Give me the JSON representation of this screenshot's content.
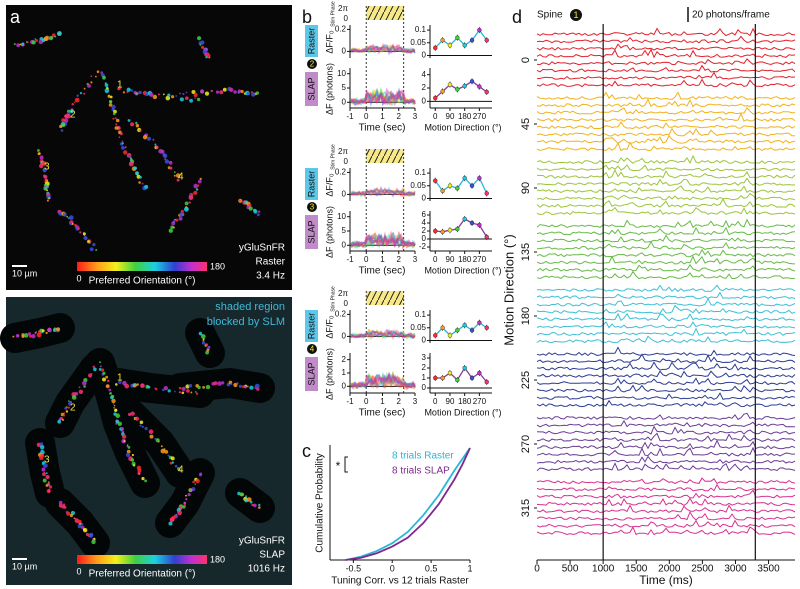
{
  "panel_a": {
    "label": "a",
    "raster": {
      "spine_labels": [
        "1",
        "2",
        "3",
        "4"
      ],
      "scale_bar": "10 µm",
      "colorbar": {
        "min": "0",
        "max": "180",
        "title": "Preferred Orientation (°)"
      },
      "info": [
        "yGluSnFR",
        "Raster",
        "3.4 Hz"
      ]
    },
    "slap": {
      "note": [
        "shaded region",
        "blocked by SLM"
      ],
      "spine_labels": [
        "1",
        "2",
        "3",
        "4"
      ],
      "scale_bar": "10 µm",
      "colorbar": {
        "min": "0",
        "max": "180",
        "title": "Preferred Orientation (°)"
      },
      "info": [
        "yGluSnFR",
        "SLAP",
        "1016 Hz"
      ]
    }
  },
  "panel_b": {
    "label": "b",
    "stim_phase_label": "Stim Phase",
    "stim_phase_ticks": [
      "2π",
      "0"
    ],
    "raster_tag": "Raster",
    "slap_tag": "SLAP",
    "raster_ylabel": "ΔF/F₀",
    "slap_ylabel": "ΔF (photons)",
    "time_label": "Time (sec)",
    "direction_label": "Motion Direction (°)",
    "time_xlim": [
      -1,
      3
    ],
    "time_xticks": [
      -1,
      0,
      1,
      2,
      3
    ],
    "stim_window_sec": [
      0,
      2.3
    ],
    "direction_xlim": [
      -20,
      335
    ],
    "direction_xticks": [
      0,
      90,
      180,
      270
    ],
    "directions": [
      0,
      45,
      90,
      135,
      180,
      225,
      270,
      315
    ],
    "spines": [
      {
        "id": "2",
        "raster_ylim": [
          -0.06,
          0.24
        ],
        "raster_yticks": [
          0,
          0.2
        ],
        "slap_ylim": [
          -2,
          12
        ],
        "slap_yticks": [
          0,
          5,
          10
        ],
        "raster_tuning_ylim": [
          -0.01,
          0.12
        ],
        "raster_tuning_yticks": [
          0,
          0.05,
          0.1
        ],
        "raster_tuning": [
          0.03,
          0.06,
          0.04,
          0.07,
          0.04,
          0.06,
          0.1,
          0.06
        ],
        "slap_tuning_ylim": [
          -1,
          5
        ],
        "slap_tuning_yticks": [
          0,
          2,
          4
        ],
        "slap_tuning": [
          0.5,
          1.5,
          2.5,
          1.8,
          2.3,
          3.0,
          2.2,
          1.4
        ]
      },
      {
        "id": "3",
        "raster_ylim": [
          -0.06,
          0.24
        ],
        "raster_yticks": [
          0,
          0.2
        ],
        "slap_ylim": [
          -2,
          12
        ],
        "slap_yticks": [
          0,
          5,
          10
        ],
        "raster_tuning_ylim": [
          -0.01,
          0.12
        ],
        "raster_tuning_yticks": [
          0,
          0.05,
          0.1
        ],
        "raster_tuning": [
          0.07,
          0.03,
          0.05,
          0.04,
          0.08,
          0.05,
          0.08,
          0.02
        ],
        "slap_tuning_ylim": [
          -3,
          7
        ],
        "slap_tuning_yticks": [
          -2,
          0,
          2,
          4,
          6
        ],
        "slap_tuning": [
          2,
          1.8,
          2.2,
          2.5,
          5,
          4,
          3.5,
          0.5
        ]
      },
      {
        "id": "4",
        "raster_ylim": [
          -0.06,
          0.24
        ],
        "raster_yticks": [
          0,
          0.2
        ],
        "slap_ylim": [
          -0.5,
          2.5
        ],
        "slap_yticks": [
          0,
          1,
          2
        ],
        "raster_tuning_ylim": [
          -0.01,
          0.12
        ],
        "raster_tuning_yticks": [
          0,
          0.05,
          0.1
        ],
        "raster_tuning": [
          0.02,
          0.05,
          0.02,
          0.04,
          0.06,
          0.04,
          0.07,
          0.05
        ],
        "slap_tuning_ylim": [
          -0.5,
          3.5
        ],
        "slap_tuning_yticks": [
          0,
          1,
          2,
          3
        ],
        "slap_tuning": [
          1.0,
          1.0,
          1.5,
          0.8,
          2.0,
          1.0,
          1.5,
          0.6
        ]
      }
    ]
  },
  "panel_c": {
    "label": "c",
    "type": "line",
    "xlabel": "Tuning Corr. vs 12 trials Raster",
    "ylabel": "Cumulative Probability",
    "significance": "*",
    "xlim": [
      -0.8,
      1
    ],
    "xticks": [
      -0.5,
      0,
      0.5,
      1
    ],
    "ylim": [
      0,
      1
    ],
    "x": [
      -0.6,
      -0.4,
      -0.2,
      0,
      0.2,
      0.4,
      0.6,
      0.8,
      0.9,
      1
    ],
    "series": [
      {
        "name": "8 trials Raster",
        "color": "#29b6d8",
        "values": [
          0,
          0.03,
          0.08,
          0.15,
          0.25,
          0.4,
          0.58,
          0.8,
          0.9,
          1
        ]
      },
      {
        "name": "8 trials SLAP",
        "color": "#7d2a8c",
        "values": [
          0,
          0.02,
          0.06,
          0.12,
          0.2,
          0.33,
          0.5,
          0.72,
          0.85,
          1
        ]
      }
    ]
  },
  "panel_d": {
    "label": "d",
    "type": "line",
    "spine_label": "Spine",
    "spine_id": "1",
    "scale_bar": "20 photons/frame",
    "xlabel": "Time (ms)",
    "ylabel": "Motion Direction (°)",
    "xlim": [
      0,
      3900
    ],
    "xticks": [
      0,
      500,
      1000,
      1500,
      2000,
      2500,
      3000,
      3500
    ],
    "stim_lines_ms": [
      1000,
      3300
    ],
    "categories": [
      0,
      45,
      90,
      135,
      180,
      225,
      270,
      315
    ],
    "colors": [
      "#e3202b",
      "#f1b21c",
      "#9cc53b",
      "#66bb46",
      "#3cbfd6",
      "#2c3b94",
      "#6b3b97",
      "#d8308e"
    ]
  }
}
